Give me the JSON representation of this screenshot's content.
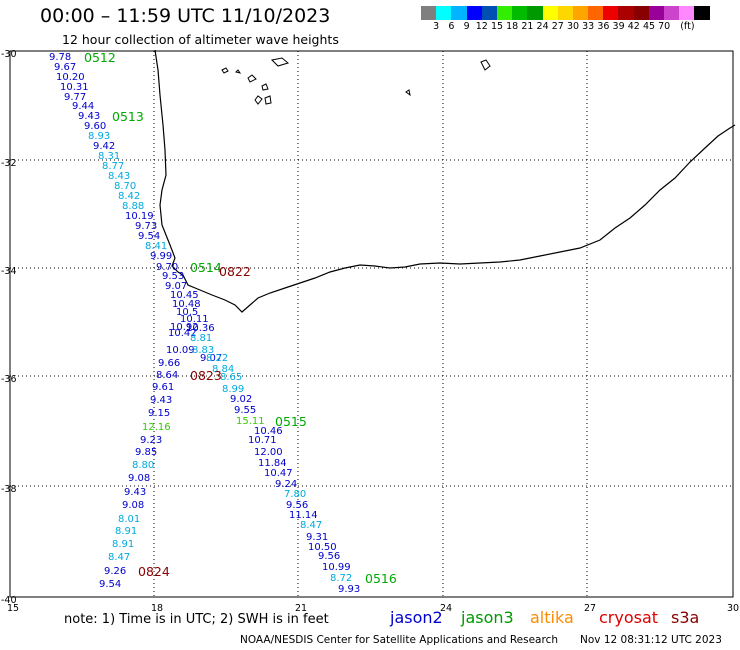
{
  "title": "00:00 – 11:59 UTC 11/10/2023",
  "subtitle": "12 hour collection of altimeter wave heights",
  "colorbar": {
    "colors": [
      "#7f7f7f",
      "#00ffff",
      "#00b4ff",
      "#0000ff",
      "#0050b4",
      "#33ee00",
      "#00bb00",
      "#009900",
      "#ffff00",
      "#ffd700",
      "#ffa500",
      "#ff6600",
      "#ee0000",
      "#aa0000",
      "#880000",
      "#990099",
      "#cc44cc",
      "#ff88ff",
      "#000000"
    ],
    "labels": [
      "3",
      "6",
      "9",
      "12",
      "15",
      "18",
      "21",
      "24",
      "27",
      "30",
      "33",
      "36",
      "39",
      "42",
      "45",
      "70",
      "(ft)"
    ]
  },
  "axes": {
    "x_ticks": [
      "15",
      "18",
      "21",
      "24",
      "27",
      "30"
    ],
    "y_ticks": [
      "-30",
      "-32",
      "-34",
      "-36",
      "-38",
      "-40"
    ]
  },
  "track_labels": [
    {
      "text": "0512",
      "color": "#00aa00"
    },
    {
      "text": "0513",
      "color": "#00aa00"
    },
    {
      "text": "0514",
      "color": "#00aa00"
    },
    {
      "text": "0515",
      "color": "#00aa00"
    },
    {
      "text": "0516",
      "color": "#00aa00"
    },
    {
      "text": "0822",
      "color": "#880000"
    },
    {
      "text": "0823",
      "color": "#880000"
    },
    {
      "text": "0824",
      "color": "#880000"
    }
  ],
  "wave_heights": [
    {
      "text": "9.78",
      "color": "#0000cc"
    },
    {
      "text": "9.67",
      "color": "#0000cc"
    },
    {
      "text": "10.20",
      "color": "#0000cc"
    },
    {
      "text": "10.31",
      "color": "#0000cc"
    },
    {
      "text": "9.77",
      "color": "#0000cc"
    },
    {
      "text": "9.44",
      "color": "#0000cc"
    },
    {
      "text": "9.43",
      "color": "#0000cc"
    },
    {
      "text": "9.60",
      "color": "#0000cc"
    },
    {
      "text": "8.93",
      "color": "#00aadd"
    },
    {
      "text": "9.42",
      "color": "#0000cc"
    },
    {
      "text": "8.31",
      "color": "#00aadd"
    },
    {
      "text": "8.77",
      "color": "#00aadd"
    },
    {
      "text": "8.43",
      "color": "#00aadd"
    },
    {
      "text": "8.70",
      "color": "#00aadd"
    },
    {
      "text": "8.42",
      "color": "#00aadd"
    },
    {
      "text": "8.88",
      "color": "#00aadd"
    },
    {
      "text": "10.19",
      "color": "#0000cc"
    },
    {
      "text": "9.73",
      "color": "#0000cc"
    },
    {
      "text": "9.54",
      "color": "#0000cc"
    },
    {
      "text": "8.41",
      "color": "#00aadd"
    },
    {
      "text": "9.99",
      "color": "#0000cc"
    },
    {
      "text": "9.70",
      "color": "#0000cc"
    },
    {
      "text": "9.53",
      "color": "#0000cc"
    },
    {
      "text": "9.07",
      "color": "#0000cc"
    },
    {
      "text": "10.45",
      "color": "#0000cc"
    },
    {
      "text": "10.48",
      "color": "#0000cc"
    },
    {
      "text": "10.5",
      "color": "#0000cc"
    },
    {
      "text": "10.11",
      "color": "#0000cc"
    },
    {
      "text": "10.92",
      "color": "#0000cc"
    },
    {
      "text": "10.36",
      "color": "#0000cc"
    },
    {
      "text": "10.42",
      "color": "#0000cc"
    },
    {
      "text": "8.81",
      "color": "#00aadd"
    },
    {
      "text": "10.09",
      "color": "#0000cc"
    },
    {
      "text": "8.83",
      "color": "#00aadd"
    },
    {
      "text": "9.07",
      "color": "#0000cc"
    },
    {
      "text": "8.22",
      "color": "#00aadd"
    },
    {
      "text": "9.66",
      "color": "#0000cc"
    },
    {
      "text": "8.84",
      "color": "#00aadd"
    },
    {
      "text": "8.64",
      "color": "#0000cc"
    },
    {
      "text": "8.65",
      "color": "#00aadd"
    },
    {
      "text": "8.99",
      "color": "#00aadd"
    },
    {
      "text": "9.61",
      "color": "#0000cc"
    },
    {
      "text": "9.02",
      "color": "#0000cc"
    },
    {
      "text": "9.43",
      "color": "#0000cc"
    },
    {
      "text": "9.55",
      "color": "#0000cc"
    },
    {
      "text": "9.15",
      "color": "#0000cc"
    },
    {
      "text": "15.11",
      "color": "#33cc00"
    },
    {
      "text": "12.16",
      "color": "#33cc00"
    },
    {
      "text": "10.46",
      "color": "#0000cc"
    },
    {
      "text": "10.71",
      "color": "#0000cc"
    },
    {
      "text": "9.23",
      "color": "#0000cc"
    },
    {
      "text": "12.00",
      "color": "#0000cc"
    },
    {
      "text": "9.85",
      "color": "#0000cc"
    },
    {
      "text": "11.84",
      "color": "#0000cc"
    },
    {
      "text": "8.80",
      "color": "#00aadd"
    },
    {
      "text": "10.47",
      "color": "#0000cc"
    },
    {
      "text": "9.08",
      "color": "#0000cc"
    },
    {
      "text": "9.24",
      "color": "#0000cc"
    },
    {
      "text": "9.43",
      "color": "#0000cc"
    },
    {
      "text": "7.80",
      "color": "#00aadd"
    },
    {
      "text": "9.56",
      "color": "#0000cc"
    },
    {
      "text": "9.08",
      "color": "#0000cc"
    },
    {
      "text": "11.14",
      "color": "#0000cc"
    },
    {
      "text": "8.01",
      "color": "#00aadd"
    },
    {
      "text": "8.47",
      "color": "#00aadd"
    },
    {
      "text": "8.91",
      "color": "#00aadd"
    },
    {
      "text": "9.31",
      "color": "#0000cc"
    },
    {
      "text": "8.91",
      "color": "#00aadd"
    },
    {
      "text": "10.50",
      "color": "#0000cc"
    },
    {
      "text": "8.47",
      "color": "#00aadd"
    },
    {
      "text": "9.56",
      "color": "#0000cc"
    },
    {
      "text": "9.26",
      "color": "#0000cc"
    },
    {
      "text": "10.99",
      "color": "#0000cc"
    },
    {
      "text": "8.72",
      "color": "#00aadd"
    },
    {
      "text": "9.54",
      "color": "#0000cc"
    },
    {
      "text": "9.93",
      "color": "#0000cc"
    }
  ],
  "footer": {
    "note": "note:  1) Time is in UTC;  2) SWH is in feet",
    "credit": "NOAA/NESDIS Center for Satellite Applications and Research",
    "date": "Nov 12 08:31:12 UTC 2023",
    "satellites": [
      {
        "name": "jason2",
        "color": "#0000cc"
      },
      {
        "name": "jason3",
        "color": "#009900"
      },
      {
        "name": "altika",
        "color": "#ff8c00"
      },
      {
        "name": "cryosat",
        "color": "#dd0000"
      },
      {
        "name": "s3a",
        "color": "#880000"
      }
    ]
  }
}
